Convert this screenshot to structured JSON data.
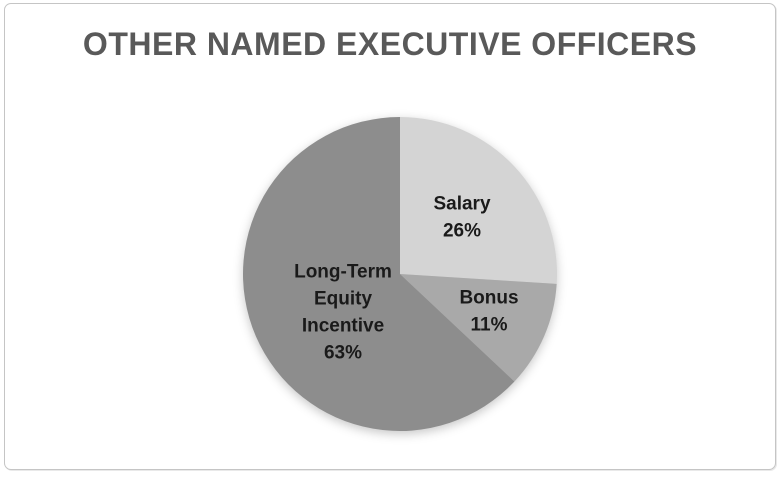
{
  "frame": {
    "background": "#ffffff",
    "border_color": "#c5c5c5"
  },
  "chart_data": {
    "type": "pie",
    "title": "OTHER NAMED EXECUTIVE OFFICERS",
    "title_color": "#595959",
    "categories": [
      "Salary",
      "Bonus",
      "Long-Term Equity Incentive"
    ],
    "values": [
      26,
      11,
      63
    ],
    "unit": "%",
    "start_angle_deg": 0,
    "direction": "clockwise",
    "slice_colors": [
      "#d4d4d4",
      "#a9a9a9",
      "#8d8d8d"
    ],
    "data_label_lines": [
      [
        "Salary",
        "26%"
      ],
      [
        "Bonus",
        "11%"
      ],
      [
        "Long-Term",
        "Equity",
        "Incentive",
        "63%"
      ]
    ],
    "data_label_color": "#1a1a1a",
    "legend": "none"
  }
}
